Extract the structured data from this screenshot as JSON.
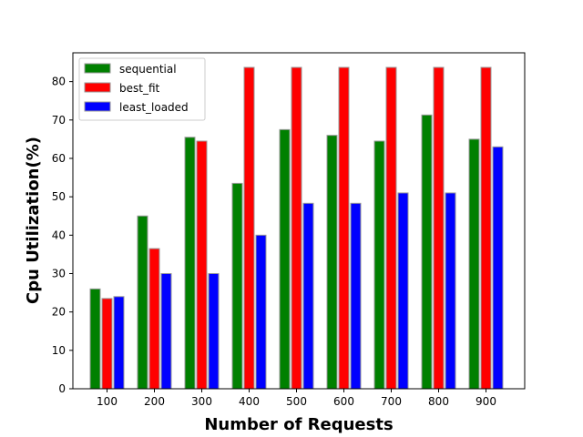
{
  "chart_data": {
    "type": "bar",
    "title": "",
    "xlabel": "Number of Requests",
    "ylabel": "Cpu Utilization(%)",
    "categories": [
      "100",
      "200",
      "300",
      "400",
      "500",
      "600",
      "700",
      "800",
      "900"
    ],
    "series": [
      {
        "name": "sequential",
        "color": "#008000",
        "values": [
          26,
          45,
          65.5,
          53.5,
          67.5,
          66,
          64.5,
          71.3,
          65
        ]
      },
      {
        "name": "best_fit",
        "color": "#ff0000",
        "values": [
          23.5,
          36.5,
          64.5,
          83.7,
          83.7,
          83.7,
          83.7,
          83.7,
          83.7
        ]
      },
      {
        "name": "least_loaded",
        "color": "#0000ff",
        "values": [
          24,
          30,
          30,
          40,
          48.3,
          48.3,
          51,
          51,
          63
        ]
      }
    ],
    "ylim": [
      0,
      87.5
    ],
    "yticks": [
      0,
      10,
      20,
      30,
      40,
      50,
      60,
      70,
      80
    ],
    "legend_position": "top-left",
    "grid": false
  }
}
